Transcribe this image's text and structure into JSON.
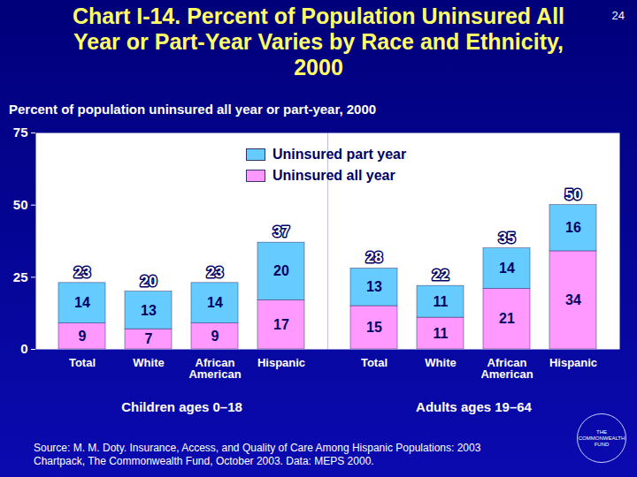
{
  "chart_data": {
    "type": "bar",
    "title": "Chart I-14. Percent of Population Uninsured All Year or Part-Year Varies by Race and Ethnicity, 2000",
    "subtitle": "Percent of population uninsured all year or part-year, 2000",
    "page_number": "24",
    "source": "Source: M. M. Doty. Insurance, Access, and Quality of Care Among Hispanic Populations: 2003 Chartpack, The Commonwealth Fund, October 2003. Data: MEPS 2000.",
    "logo": "THE COMMONWEALTH FUND",
    "categories": [
      "Total",
      "White",
      "African American",
      "Hispanic",
      "Total",
      "White",
      "African American",
      "Hispanic"
    ],
    "groups": [
      "Children ages 0–18",
      "Children ages 0–18",
      "Children ages 0–18",
      "Children ages 0–18",
      "Adults ages 19–64",
      "Adults ages 19–64",
      "Adults ages 19–64",
      "Adults ages 19–64"
    ],
    "series": [
      {
        "name": "Uninsured all year",
        "color": "#ff99ff",
        "values": [
          9,
          7,
          9,
          17,
          15,
          11,
          21,
          34
        ]
      },
      {
        "name": "Uninsured part year",
        "color": "#66ccff",
        "values": [
          14,
          13,
          14,
          20,
          13,
          11,
          14,
          16
        ]
      }
    ],
    "totals": [
      23,
      20,
      23,
      37,
      28,
      22,
      35,
      50
    ],
    "ylim": [
      0,
      75
    ],
    "yticks": [
      0,
      25,
      50,
      75
    ],
    "stacked": true,
    "data_labels": true,
    "grid": false,
    "legend": "top"
  }
}
